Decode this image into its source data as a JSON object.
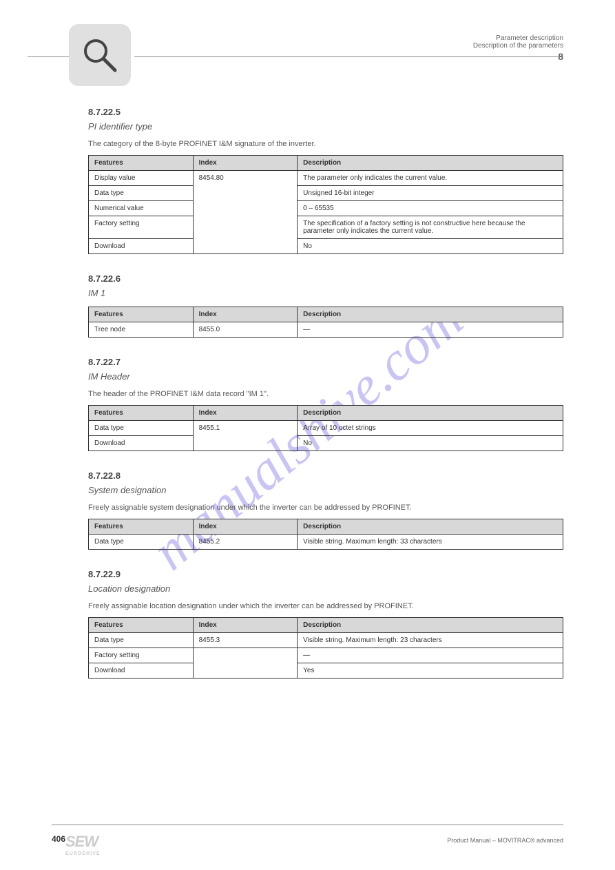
{
  "watermark": "manualshive.com",
  "header": {
    "chap_label": "Parameter description",
    "sub_label": "Description of the parameters",
    "chap_num": "8"
  },
  "sections": [
    {
      "num": "8.7.22.5",
      "title": "PI identifier type",
      "desc": "The category of the 8-byte PROFINET I&M signature of the inverter.",
      "headers": [
        "Features",
        "Index",
        "Description"
      ],
      "rows": [
        [
          {
            "t": "Display value",
            "rs": 1
          },
          {
            "t": "8454.80",
            "rs": 5
          },
          {
            "t": "The parameter only indicates the current value.",
            "rs": 1
          }
        ],
        [
          {
            "t": "Data type",
            "rs": 1
          },
          null,
          {
            "t": "Unsigned 16-bit integer",
            "rs": 1
          }
        ],
        [
          {
            "t": "Numerical value",
            "rs": 1
          },
          null,
          {
            "t": "0 – 65535",
            "rs": 1
          }
        ],
        [
          {
            "t": "Factory setting",
            "rs": 1
          },
          null,
          {
            "t": "The specification of a factory setting is not constructive here because the parameter only indicates the current value.",
            "rs": 1
          }
        ],
        [
          {
            "t": "Download",
            "rs": 1
          },
          null,
          {
            "t": "No",
            "rs": 1
          }
        ]
      ]
    },
    {
      "num": "8.7.22.6",
      "title": "IM 1",
      "desc": "",
      "headers": [
        "Features",
        "Index",
        "Description"
      ],
      "rows": [
        [
          {
            "t": "Tree node",
            "rs": 1
          },
          {
            "t": "8455.0",
            "rs": 1
          },
          {
            "t": "—",
            "rs": 1
          }
        ]
      ]
    },
    {
      "num": "8.7.22.7",
      "title": "IM Header",
      "desc": "The header of the PROFINET I&M data record \"IM 1\".",
      "headers": [
        "Features",
        "Index",
        "Description"
      ],
      "rows": [
        [
          {
            "t": "Data type",
            "rs": 1
          },
          {
            "t": "8455.1",
            "rs": 2
          },
          {
            "t": "Array of 10 octet strings",
            "rs": 1
          }
        ],
        [
          {
            "t": "Download",
            "rs": 1
          },
          null,
          {
            "t": "No",
            "rs": 1
          }
        ]
      ]
    },
    {
      "num": "8.7.22.8",
      "title": "System designation",
      "desc": "Freely assignable system designation under which the inverter can be addressed by PROFINET.",
      "headers": [
        "Features",
        "Index",
        "Description"
      ],
      "rows": [
        [
          {
            "t": "Data type",
            "rs": 1
          },
          {
            "t": "8455.2",
            "rs": 1
          },
          {
            "t": "Visible string. Maximum length: 33 characters",
            "rs": 1
          }
        ]
      ]
    },
    {
      "num": "8.7.22.9",
      "title": "Location designation",
      "desc": "Freely assignable location designation under which the inverter can be addressed by PROFINET.",
      "headers": [
        "Features",
        "Index",
        "Description"
      ],
      "rows": [
        [
          {
            "t": "Data type",
            "rs": 1
          },
          {
            "t": "8455.3",
            "rs": 1
          },
          {
            "t": "Visible string. Maximum length: 23 characters",
            "rs": 1
          }
        ],
        [
          {
            "t": "Factory setting",
            "rs": 1
          },
          {
            "t": "",
            "rs": 2
          },
          {
            "t": "—",
            "rs": 1
          }
        ],
        [
          {
            "t": "Download",
            "rs": 1
          },
          null,
          {
            "t": "Yes",
            "rs": 1
          }
        ]
      ]
    }
  ],
  "footer": {
    "page": "406",
    "doc": "Product Manual – MOVITRAC® advanced"
  },
  "logo": {
    "main": "SEW",
    "sub": "EURODRIVE"
  }
}
